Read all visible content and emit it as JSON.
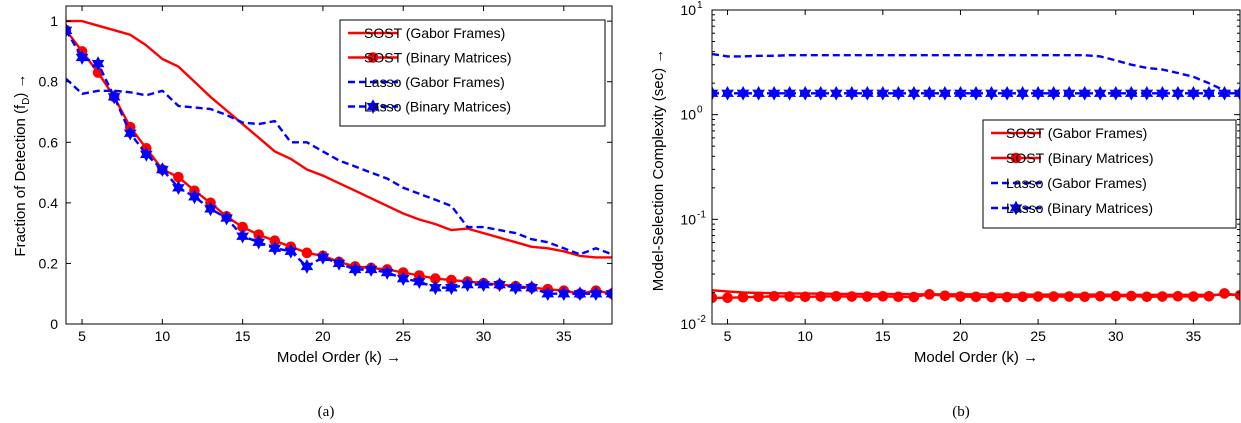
{
  "chart_data": [
    {
      "type": "line",
      "caption": "(a)",
      "xlabel": "Model Order (k) →",
      "ylabel": "Fraction of Detection (f",
      "ylabel_sub": "D",
      "ylabel_tail": ") →",
      "xlim": [
        4,
        38
      ],
      "ylim": [
        0,
        1.05
      ],
      "yscale": "linear",
      "grid": false,
      "legend_position": "top-right",
      "xticks": [
        5,
        10,
        15,
        20,
        25,
        30,
        35
      ],
      "yticks": [
        0,
        0.2,
        0.4,
        0.6,
        0.8,
        1
      ],
      "ytick_labels": [
        "0",
        "0.2",
        "0.4",
        "0.6",
        "0.8",
        "1"
      ],
      "series": [
        {
          "name": "SOST (Gabor Frames)",
          "color": "#ff0000",
          "style": "solid",
          "marker": "none",
          "x": [
            4,
            5,
            6,
            7,
            8,
            9,
            10,
            11,
            12,
            13,
            14,
            15,
            16,
            17,
            18,
            19,
            20,
            21,
            22,
            23,
            24,
            25,
            26,
            27,
            28,
            29,
            30,
            31,
            32,
            33,
            34,
            35,
            36,
            37,
            38
          ],
          "y": [
            1.0,
            1.0,
            0.985,
            0.97,
            0.955,
            0.92,
            0.875,
            0.85,
            0.8,
            0.75,
            0.705,
            0.66,
            0.615,
            0.57,
            0.545,
            0.51,
            0.49,
            0.465,
            0.44,
            0.415,
            0.39,
            0.365,
            0.345,
            0.33,
            0.31,
            0.315,
            0.3,
            0.285,
            0.27,
            0.255,
            0.25,
            0.24,
            0.225,
            0.22,
            0.22
          ]
        },
        {
          "name": "SOST (Binary Matrices)",
          "color": "#ff0000",
          "style": "solid",
          "marker": "circle",
          "x": [
            4,
            5,
            6,
            7,
            8,
            9,
            10,
            11,
            12,
            13,
            14,
            15,
            16,
            17,
            18,
            19,
            20,
            21,
            22,
            23,
            24,
            25,
            26,
            27,
            28,
            29,
            30,
            31,
            32,
            33,
            34,
            35,
            36,
            37,
            38
          ],
          "y": [
            0.97,
            0.9,
            0.83,
            0.75,
            0.65,
            0.58,
            0.51,
            0.485,
            0.44,
            0.4,
            0.355,
            0.32,
            0.295,
            0.275,
            0.255,
            0.235,
            0.225,
            0.205,
            0.19,
            0.185,
            0.18,
            0.17,
            0.16,
            0.15,
            0.145,
            0.14,
            0.135,
            0.13,
            0.125,
            0.12,
            0.115,
            0.11,
            0.1,
            0.11,
            0.1
          ]
        },
        {
          "name": "Lasso (Gabor Frames)",
          "color": "#0000ff",
          "style": "dashed",
          "marker": "none",
          "x": [
            4,
            5,
            6,
            7,
            8,
            9,
            10,
            11,
            12,
            13,
            14,
            15,
            16,
            17,
            18,
            19,
            20,
            21,
            22,
            23,
            24,
            25,
            26,
            27,
            28,
            29,
            30,
            31,
            32,
            33,
            34,
            35,
            36,
            37,
            38
          ],
          "y": [
            0.81,
            0.76,
            0.77,
            0.77,
            0.765,
            0.755,
            0.77,
            0.72,
            0.715,
            0.71,
            0.69,
            0.665,
            0.66,
            0.67,
            0.6,
            0.6,
            0.57,
            0.54,
            0.52,
            0.5,
            0.48,
            0.45,
            0.43,
            0.41,
            0.39,
            0.32,
            0.32,
            0.31,
            0.3,
            0.28,
            0.27,
            0.25,
            0.23,
            0.25,
            0.23
          ]
        },
        {
          "name": "Lasso (Binary Matrices)",
          "color": "#0000ff",
          "style": "dashed",
          "marker": "star",
          "x": [
            4,
            5,
            6,
            7,
            8,
            9,
            10,
            11,
            12,
            13,
            14,
            15,
            16,
            17,
            18,
            19,
            20,
            21,
            22,
            23,
            24,
            25,
            26,
            27,
            28,
            29,
            30,
            31,
            32,
            33,
            34,
            35,
            36,
            37,
            38
          ],
          "y": [
            0.97,
            0.88,
            0.86,
            0.75,
            0.63,
            0.56,
            0.51,
            0.45,
            0.42,
            0.38,
            0.35,
            0.29,
            0.27,
            0.25,
            0.24,
            0.19,
            0.22,
            0.2,
            0.18,
            0.18,
            0.17,
            0.15,
            0.14,
            0.12,
            0.12,
            0.13,
            0.13,
            0.13,
            0.12,
            0.12,
            0.1,
            0.1,
            0.1,
            0.1,
            0.1
          ]
        }
      ]
    },
    {
      "type": "line",
      "caption": "(b)",
      "xlabel": "Model Order (k) →",
      "ylabel": "Model-Selection Complexity (sec) →",
      "xlim": [
        4,
        38
      ],
      "ylim": [
        0.01,
        10
      ],
      "yscale": "log",
      "grid": false,
      "legend_position": "center-right",
      "xticks": [
        5,
        10,
        15,
        20,
        25,
        30,
        35
      ],
      "yticks": [
        0.01,
        0.1,
        1,
        10
      ],
      "ytick_bases": [
        "10",
        "10",
        "10",
        "10"
      ],
      "ytick_exps": [
        "-2",
        "-1",
        "0",
        "1"
      ],
      "series": [
        {
          "name": "SOST (Gabor Frames)",
          "color": "#ff0000",
          "style": "solid",
          "marker": "none",
          "x": [
            4,
            5,
            6,
            7,
            8,
            9,
            10,
            11,
            12,
            13,
            14,
            15,
            16,
            17,
            18,
            19,
            20,
            21,
            22,
            23,
            24,
            25,
            26,
            27,
            28,
            29,
            30,
            31,
            32,
            33,
            34,
            35,
            36,
            37,
            38
          ],
          "y": [
            0.021,
            0.0205,
            0.02,
            0.0198,
            0.0197,
            0.0196,
            0.0195,
            0.0195,
            0.0194,
            0.0194,
            0.0193,
            0.0193,
            0.0193,
            0.0192,
            0.0192,
            0.0192,
            0.0192,
            0.0192,
            0.0191,
            0.0191,
            0.0191,
            0.0191,
            0.0191,
            0.0191,
            0.0191,
            0.0191,
            0.019,
            0.019,
            0.019,
            0.019,
            0.019,
            0.019,
            0.019,
            0.019,
            0.019
          ]
        },
        {
          "name": "SOST (Binary Matrices)",
          "color": "#ff0000",
          "style": "solid",
          "marker": "circle",
          "x": [
            4,
            5,
            6,
            7,
            8,
            9,
            10,
            11,
            12,
            13,
            14,
            15,
            16,
            17,
            18,
            19,
            20,
            21,
            22,
            23,
            24,
            25,
            26,
            27,
            28,
            29,
            30,
            31,
            32,
            33,
            34,
            35,
            36,
            37,
            38
          ],
          "y": [
            0.0178,
            0.0178,
            0.018,
            0.0182,
            0.0184,
            0.0183,
            0.0182,
            0.0183,
            0.0184,
            0.0183,
            0.0183,
            0.0184,
            0.0182,
            0.0181,
            0.0192,
            0.0186,
            0.0183,
            0.0182,
            0.0181,
            0.0181,
            0.0182,
            0.0183,
            0.0183,
            0.0183,
            0.0182,
            0.0184,
            0.0185,
            0.0185,
            0.0182,
            0.0183,
            0.0184,
            0.0183,
            0.0184,
            0.0196,
            0.0188
          ]
        },
        {
          "name": "Lasso (Gabor Frames)",
          "color": "#0000ff",
          "style": "dashed",
          "marker": "none",
          "x": [
            4,
            5,
            6,
            7,
            8,
            9,
            10,
            11,
            12,
            13,
            14,
            15,
            16,
            17,
            18,
            19,
            20,
            21,
            22,
            23,
            24,
            25,
            26,
            27,
            28,
            29,
            30,
            31,
            32,
            33,
            34,
            35,
            36,
            37,
            38
          ],
          "y": [
            3.8,
            3.6,
            3.6,
            3.65,
            3.65,
            3.7,
            3.7,
            3.7,
            3.7,
            3.7,
            3.7,
            3.7,
            3.7,
            3.7,
            3.7,
            3.7,
            3.7,
            3.7,
            3.7,
            3.7,
            3.7,
            3.7,
            3.7,
            3.7,
            3.7,
            3.6,
            3.3,
            3.0,
            2.8,
            2.7,
            2.5,
            2.3,
            2.0,
            1.7,
            1.6
          ]
        },
        {
          "name": "Lasso (Binary Matrices)",
          "color": "#0000ff",
          "style": "dashed",
          "marker": "star",
          "x": [
            4,
            5,
            6,
            7,
            8,
            9,
            10,
            11,
            12,
            13,
            14,
            15,
            16,
            17,
            18,
            19,
            20,
            21,
            22,
            23,
            24,
            25,
            26,
            27,
            28,
            29,
            30,
            31,
            32,
            33,
            34,
            35,
            36,
            37,
            38
          ],
          "y": [
            1.6,
            1.6,
            1.6,
            1.6,
            1.6,
            1.6,
            1.6,
            1.6,
            1.6,
            1.6,
            1.6,
            1.6,
            1.6,
            1.6,
            1.6,
            1.6,
            1.6,
            1.6,
            1.6,
            1.6,
            1.6,
            1.6,
            1.6,
            1.6,
            1.6,
            1.6,
            1.6,
            1.6,
            1.6,
            1.6,
            1.6,
            1.6,
            1.6,
            1.6,
            1.6
          ]
        }
      ]
    }
  ]
}
